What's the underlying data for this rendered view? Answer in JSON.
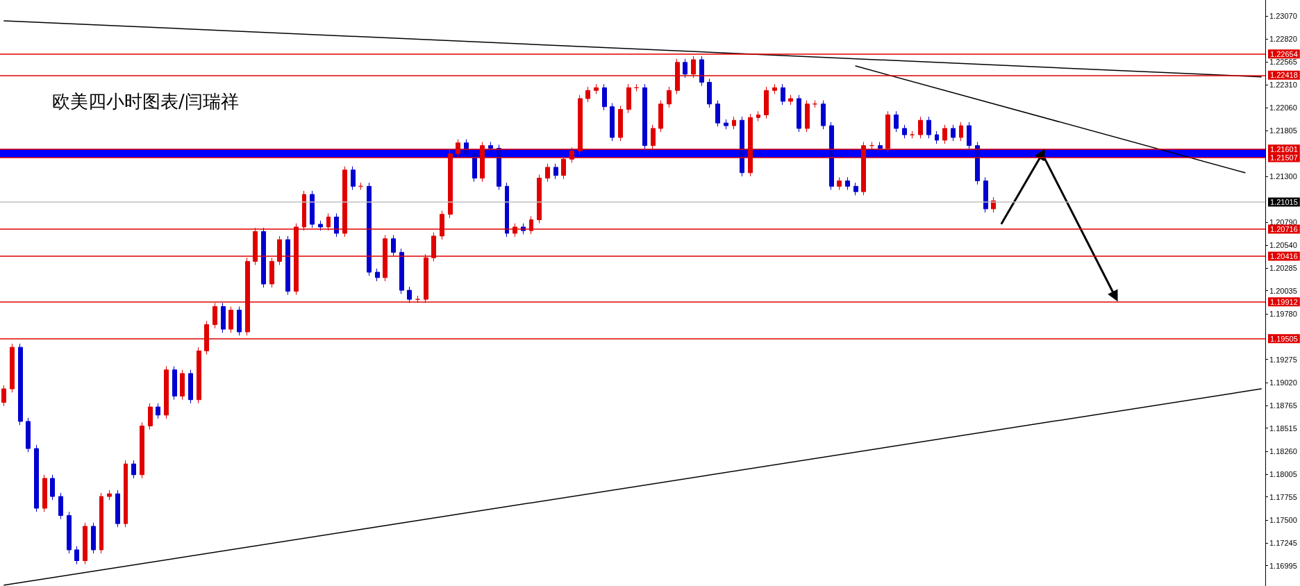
{
  "chart_data": {
    "type": "candlestick",
    "title": "欧美四小时图表/闫瑞祥",
    "categories": [
      null,
      null,
      null,
      null,
      null,
      null,
      null,
      null,
      null,
      null,
      null,
      null,
      null,
      null,
      null,
      null,
      null,
      null,
      null,
      null,
      null,
      null,
      null,
      null,
      null,
      null,
      null,
      null,
      null,
      null,
      null,
      null,
      null,
      null,
      null,
      null,
      null,
      null,
      null,
      null,
      null,
      null,
      null,
      null,
      null,
      null,
      null,
      null,
      null,
      null,
      null,
      null,
      null,
      null,
      null,
      null,
      null,
      null,
      null,
      null,
      null,
      null,
      null,
      null,
      null,
      null,
      null,
      null,
      null,
      null,
      null,
      null,
      null,
      null,
      null,
      null,
      null,
      null,
      null,
      null,
      null,
      null,
      null,
      null,
      null,
      null,
      null,
      null,
      null,
      null,
      null,
      null,
      null,
      null,
      null,
      null,
      null,
      null,
      null,
      null,
      null,
      null,
      null,
      null,
      null,
      null,
      null,
      null,
      null,
      null,
      null,
      null,
      null,
      null,
      null,
      null,
      null,
      null,
      null,
      null,
      null,
      null,
      null,
      null,
      null,
      null,
      null,
      null,
      null,
      null,
      null,
      null,
      null,
      null,
      null,
      null,
      null,
      null,
      null,
      null,
      null,
      null,
      null,
      null,
      null,
      null,
      null,
      null,
      null,
      null,
      null,
      null,
      null,
      null,
      null,
      null
    ],
    "ohlc": [
      [
        1.188,
        1.1899,
        1.1876,
        1.1895
      ],
      [
        1.1895,
        1.1945,
        1.1891,
        1.1941
      ],
      [
        1.1941,
        1.1945,
        1.1855,
        1.1859
      ],
      [
        1.1859,
        1.1863,
        1.1825,
        1.1829
      ],
      [
        1.1829,
        1.1833,
        1.1759,
        1.1763
      ],
      [
        1.1763,
        1.18,
        1.1759,
        1.1796
      ],
      [
        1.1796,
        1.18,
        1.1772,
        1.1776
      ],
      [
        1.1776,
        1.178,
        1.1751,
        1.1755
      ],
      [
        1.1755,
        1.1759,
        1.1713,
        1.1717
      ],
      [
        1.1717,
        1.1721,
        1.1701,
        1.1705
      ],
      [
        1.1705,
        1.1747,
        1.1701,
        1.1743
      ],
      [
        1.1743,
        1.1747,
        1.1713,
        1.1717
      ],
      [
        1.1717,
        1.178,
        1.1713,
        1.1776
      ],
      [
        1.1776,
        1.1783,
        1.1772,
        1.1779
      ],
      [
        1.1779,
        1.1783,
        1.1742,
        1.1746
      ],
      [
        1.1746,
        1.1816,
        1.1742,
        1.1812
      ],
      [
        1.1812,
        1.1816,
        1.1796,
        1.18
      ],
      [
        1.18,
        1.1858,
        1.1796,
        1.1854
      ],
      [
        1.1854,
        1.1879,
        1.185,
        1.1875
      ],
      [
        1.1875,
        1.1879,
        1.1862,
        1.1866
      ],
      [
        1.1866,
        1.192,
        1.1862,
        1.1916
      ],
      [
        1.1916,
        1.192,
        1.1883,
        1.1887
      ],
      [
        1.1887,
        1.1916,
        1.1883,
        1.1912
      ],
      [
        1.1912,
        1.1916,
        1.1879,
        1.1883
      ],
      [
        1.1883,
        1.1941,
        1.1879,
        1.1937
      ],
      [
        1.1937,
        1.197,
        1.1933,
        1.1966
      ],
      [
        1.1966,
        1.199,
        1.1962,
        1.1986
      ],
      [
        1.1986,
        1.199,
        1.1957,
        1.1961
      ],
      [
        1.1961,
        1.1986,
        1.1957,
        1.1982
      ],
      [
        1.1982,
        1.1986,
        1.1954,
        1.1958
      ],
      [
        1.1958,
        1.204,
        1.1954,
        1.2036
      ],
      [
        1.2036,
        1.2073,
        1.2032,
        1.2069
      ],
      [
        1.2069,
        1.2073,
        1.2007,
        1.2011
      ],
      [
        1.2011,
        1.204,
        1.2007,
        1.2036
      ],
      [
        1.2036,
        1.2064,
        1.2032,
        1.206
      ],
      [
        1.206,
        1.2064,
        1.1999,
        1.2003
      ],
      [
        1.2003,
        1.2078,
        1.1999,
        1.2074
      ],
      [
        1.2074,
        1.2114,
        1.207,
        1.211
      ],
      [
        1.211,
        1.2114,
        1.2073,
        1.2077
      ],
      [
        1.2077,
        1.2081,
        1.207,
        1.2074
      ],
      [
        1.2074,
        1.2089,
        1.207,
        1.2085
      ],
      [
        1.2085,
        1.2089,
        1.2063,
        1.2067
      ],
      [
        1.2067,
        1.2141,
        1.2063,
        1.2137
      ],
      [
        1.2137,
        1.2141,
        1.2115,
        1.2119
      ],
      [
        1.2119,
        1.2123,
        1.2115,
        1.2119
      ],
      [
        1.2119,
        1.2123,
        1.202,
        1.2024
      ],
      [
        1.2024,
        1.2028,
        1.2014,
        1.2018
      ],
      [
        1.2018,
        1.2065,
        1.2014,
        1.2061
      ],
      [
        1.2061,
        1.2065,
        1.2042,
        1.2046
      ],
      [
        1.2046,
        1.205,
        1.2,
        1.2004
      ],
      [
        1.2004,
        1.2008,
        1.199,
        1.1994
      ],
      [
        1.1994,
        1.1998,
        1.199,
        1.1994
      ],
      [
        1.1994,
        1.2044,
        1.199,
        1.204
      ],
      [
        1.204,
        1.2068,
        1.2036,
        1.2064
      ],
      [
        1.2064,
        1.2092,
        1.206,
        1.2088
      ],
      [
        1.2088,
        1.2159,
        1.2084,
        1.2155
      ],
      [
        1.2155,
        1.2171,
        1.2151,
        1.2167
      ],
      [
        1.2167,
        1.2171,
        1.2151,
        1.2155
      ],
      [
        1.2155,
        1.2159,
        1.2124,
        1.2128
      ],
      [
        1.2128,
        1.2168,
        1.2124,
        1.2164
      ],
      [
        1.2164,
        1.2168,
        1.2157,
        1.2161
      ],
      [
        1.2161,
        1.2165,
        1.2115,
        1.2119
      ],
      [
        1.2119,
        1.2123,
        1.2063,
        1.2067
      ],
      [
        1.2067,
        1.2078,
        1.2063,
        1.2074
      ],
      [
        1.2074,
        1.2078,
        1.2066,
        1.207
      ],
      [
        1.207,
        1.2086,
        1.2066,
        1.2082
      ],
      [
        1.2082,
        1.2132,
        1.2078,
        1.2128
      ],
      [
        1.2128,
        1.2144,
        1.2124,
        1.214
      ],
      [
        1.214,
        1.2144,
        1.2127,
        1.2131
      ],
      [
        1.2131,
        1.2153,
        1.2127,
        1.2149
      ],
      [
        1.2149,
        1.2162,
        1.2145,
        1.2158
      ],
      [
        1.2158,
        1.222,
        1.2154,
        1.2216
      ],
      [
        1.2216,
        1.2229,
        1.2212,
        1.2225
      ],
      [
        1.2225,
        1.2232,
        1.2221,
        1.2228
      ],
      [
        1.2228,
        1.2232,
        1.2203,
        1.2207
      ],
      [
        1.2207,
        1.2211,
        1.2169,
        1.2173
      ],
      [
        1.2173,
        1.2208,
        1.2169,
        1.2204
      ],
      [
        1.2204,
        1.2232,
        1.22,
        1.2228
      ],
      [
        1.2228,
        1.2232,
        1.2224,
        1.2228
      ],
      [
        1.2228,
        1.2232,
        1.216,
        1.2164
      ],
      [
        1.2164,
        1.2187,
        1.216,
        1.2183
      ],
      [
        1.2183,
        1.2214,
        1.2179,
        1.221
      ],
      [
        1.221,
        1.2229,
        1.2206,
        1.2225
      ],
      [
        1.2225,
        1.226,
        1.2221,
        1.2256
      ],
      [
        1.2256,
        1.226,
        1.2239,
        1.2243
      ],
      [
        1.2243,
        1.2263,
        1.2239,
        1.2259
      ],
      [
        1.2259,
        1.2263,
        1.223,
        1.2234
      ],
      [
        1.2234,
        1.2238,
        1.2206,
        1.221
      ],
      [
        1.221,
        1.2214,
        1.2185,
        1.2189
      ],
      [
        1.2189,
        1.2193,
        1.2182,
        1.2186
      ],
      [
        1.2186,
        1.2196,
        1.2182,
        1.2192
      ],
      [
        1.2192,
        1.2196,
        1.213,
        1.2134
      ],
      [
        1.2134,
        1.2199,
        1.213,
        1.2195
      ],
      [
        1.2195,
        1.2202,
        1.2191,
        1.2198
      ],
      [
        1.2198,
        1.2229,
        1.2194,
        1.2225
      ],
      [
        1.2225,
        1.2232,
        1.2221,
        1.2228
      ],
      [
        1.2228,
        1.2232,
        1.2209,
        1.2213
      ],
      [
        1.2213,
        1.222,
        1.2209,
        1.2216
      ],
      [
        1.2216,
        1.222,
        1.2179,
        1.2183
      ],
      [
        1.2183,
        1.2214,
        1.2179,
        1.221
      ],
      [
        1.221,
        1.2214,
        1.2206,
        1.221
      ],
      [
        1.221,
        1.2214,
        1.2182,
        1.2186
      ],
      [
        1.2186,
        1.219,
        1.2115,
        1.2119
      ],
      [
        1.2119,
        1.2129,
        1.2115,
        1.2125
      ],
      [
        1.2125,
        1.2129,
        1.2115,
        1.2119
      ],
      [
        1.2119,
        1.2123,
        1.2109,
        1.2113
      ],
      [
        1.2113,
        1.2168,
        1.2109,
        1.2164
      ],
      [
        1.2164,
        1.2168,
        1.216,
        1.2164
      ],
      [
        1.2164,
        1.2168,
        1.2157,
        1.2161
      ],
      [
        1.2161,
        1.2202,
        1.2157,
        1.2198
      ],
      [
        1.2198,
        1.2202,
        1.2179,
        1.2183
      ],
      [
        1.2183,
        1.2187,
        1.2172,
        1.2176
      ],
      [
        1.2176,
        1.218,
        1.2172,
        1.2176
      ],
      [
        1.2176,
        1.2196,
        1.2172,
        1.2192
      ],
      [
        1.2192,
        1.2196,
        1.2172,
        1.2176
      ],
      [
        1.2176,
        1.218,
        1.2166,
        1.217
      ],
      [
        1.217,
        1.2187,
        1.2166,
        1.2183
      ],
      [
        1.2183,
        1.2187,
        1.2169,
        1.2173
      ],
      [
        1.2173,
        1.219,
        1.2169,
        1.2186
      ],
      [
        1.2186,
        1.219,
        1.216,
        1.2164
      ],
      [
        1.2164,
        1.2168,
        1.2121,
        1.2125
      ],
      [
        1.2125,
        1.2129,
        1.209,
        1.2094
      ],
      [
        1.2094,
        1.2107,
        1.209,
        1.2103
      ],
      null,
      null,
      null,
      null,
      null,
      null,
      null,
      null,
      null,
      null,
      null,
      null,
      null,
      null,
      null,
      null,
      null,
      null,
      null,
      null,
      null,
      null,
      null,
      null,
      null,
      null,
      null,
      null,
      null,
      null,
      null,
      null,
      null
    ],
    "series": [
      {
        "type": "line",
        "color": "#000000",
        "values": [
          1.2302,
          null,
          null,
          null,
          null,
          null,
          null,
          null,
          null,
          null,
          null,
          null,
          null,
          null,
          null,
          null,
          null,
          null,
          null,
          null,
          null,
          null,
          null,
          null,
          null,
          null,
          null,
          null,
          null,
          null,
          null,
          null,
          null,
          null,
          null,
          null,
          null,
          null,
          null,
          null,
          null,
          null,
          null,
          null,
          null,
          null,
          null,
          null,
          null,
          null,
          null,
          null,
          null,
          null,
          null,
          null,
          null,
          null,
          null,
          null,
          null,
          null,
          null,
          null,
          null,
          null,
          null,
          null,
          null,
          null,
          null,
          null,
          null,
          null,
          null,
          null,
          null,
          null,
          null,
          null,
          null,
          null,
          null,
          null,
          null,
          null,
          null,
          null,
          null,
          null,
          null,
          null,
          null,
          null,
          null,
          null,
          null,
          null,
          null,
          null,
          null,
          null,
          null,
          null,
          null,
          null,
          null,
          null,
          null,
          null,
          null,
          null,
          null,
          null,
          null,
          null,
          null,
          null,
          null,
          null,
          null,
          null,
          null,
          null,
          null,
          null,
          null,
          null,
          null,
          null,
          null,
          null,
          null,
          null,
          null,
          null,
          null,
          null,
          null,
          null,
          null,
          null,
          null,
          null,
          null,
          null,
          null,
          null,
          null,
          null,
          null,
          null,
          null,
          null,
          null,
          1.224
        ]
      },
      {
        "type": "line",
        "color": "#000000",
        "values": [
          1.1678,
          null,
          null,
          null,
          null,
          null,
          null,
          null,
          null,
          null,
          null,
          null,
          null,
          null,
          null,
          null,
          null,
          null,
          null,
          null,
          null,
          null,
          null,
          null,
          null,
          null,
          null,
          null,
          null,
          null,
          null,
          null,
          null,
          null,
          null,
          null,
          null,
          null,
          null,
          null,
          null,
          null,
          null,
          null,
          null,
          null,
          null,
          null,
          null,
          null,
          null,
          null,
          null,
          null,
          null,
          null,
          null,
          null,
          null,
          null,
          null,
          null,
          null,
          null,
          null,
          null,
          null,
          null,
          null,
          null,
          null,
          null,
          null,
          null,
          null,
          null,
          null,
          null,
          null,
          null,
          null,
          null,
          null,
          null,
          null,
          null,
          null,
          null,
          null,
          null,
          null,
          null,
          null,
          null,
          null,
          null,
          null,
          null,
          null,
          null,
          null,
          null,
          null,
          null,
          null,
          null,
          null,
          null,
          null,
          null,
          null,
          null,
          null,
          null,
          null,
          null,
          null,
          null,
          null,
          null,
          null,
          null,
          null,
          null,
          null,
          null,
          null,
          null,
          null,
          null,
          null,
          null,
          null,
          null,
          null,
          null,
          null,
          null,
          null,
          null,
          null,
          null,
          null,
          null,
          null,
          null,
          null,
          null,
          null,
          null,
          null,
          null,
          null,
          null,
          null,
          1.1895
        ]
      },
      {
        "type": "line",
        "color": "#000000",
        "values": [
          null,
          null,
          null,
          null,
          null,
          null,
          null,
          null,
          null,
          null,
          null,
          null,
          null,
          null,
          null,
          null,
          null,
          null,
          null,
          null,
          null,
          null,
          null,
          null,
          null,
          null,
          null,
          null,
          null,
          null,
          null,
          null,
          null,
          null,
          null,
          null,
          null,
          null,
          null,
          null,
          null,
          null,
          null,
          null,
          null,
          null,
          null,
          null,
          null,
          null,
          null,
          null,
          null,
          null,
          null,
          null,
          null,
          null,
          null,
          null,
          null,
          null,
          null,
          null,
          null,
          null,
          null,
          null,
          null,
          null,
          null,
          null,
          null,
          null,
          null,
          null,
          null,
          null,
          null,
          null,
          null,
          null,
          null,
          null,
          null,
          null,
          null,
          null,
          null,
          null,
          null,
          null,
          null,
          null,
          null,
          null,
          null,
          null,
          null,
          null,
          null,
          null,
          null,
          null,
          null,
          1.2252,
          null,
          null,
          null,
          null,
          null,
          null,
          null,
          null,
          null,
          null,
          null,
          null,
          null,
          null,
          null,
          null,
          null,
          null,
          null,
          null,
          null,
          null,
          null,
          null,
          null,
          null,
          null,
          null,
          null,
          null,
          null,
          null,
          null,
          null,
          null,
          null,
          null,
          null,
          null,
          null,
          null,
          null,
          null,
          null,
          null,
          null,
          null,
          1.2134,
          null,
          null
        ]
      },
      {
        "type": "line",
        "color": "#000000",
        "marker": "triangle",
        "values": [
          null,
          null,
          null,
          null,
          null,
          null,
          null,
          null,
          null,
          null,
          null,
          null,
          null,
          null,
          null,
          null,
          null,
          null,
          null,
          null,
          null,
          null,
          null,
          null,
          null,
          null,
          null,
          null,
          null,
          null,
          null,
          null,
          null,
          null,
          null,
          null,
          null,
          null,
          null,
          null,
          null,
          null,
          null,
          null,
          null,
          null,
          null,
          null,
          null,
          null,
          null,
          null,
          null,
          null,
          null,
          null,
          null,
          null,
          null,
          null,
          null,
          null,
          null,
          null,
          null,
          null,
          null,
          null,
          null,
          null,
          null,
          null,
          null,
          null,
          null,
          null,
          null,
          null,
          null,
          null,
          null,
          null,
          null,
          null,
          null,
          null,
          null,
          null,
          null,
          null,
          null,
          null,
          null,
          null,
          null,
          null,
          null,
          null,
          null,
          null,
          null,
          null,
          null,
          null,
          null,
          null,
          null,
          null,
          null,
          null,
          null,
          null,
          null,
          null,
          null,
          null,
          null,
          null,
          null,
          null,
          null,
          null,
          null,
          1.2078,
          null,
          null,
          null,
          null,
          1.2155,
          null,
          null,
          null,
          null,
          null,
          null,
          null,
          null,
          1.1997,
          null,
          null,
          null,
          null,
          null,
          null,
          null,
          null,
          null,
          null,
          null,
          null,
          null,
          null,
          null,
          null,
          null,
          null
        ]
      }
    ],
    "ylim": [
      1.1677,
      1.2325
    ],
    "yticks": [
      {
        "value": 1.2307,
        "label": "1.23070"
      },
      {
        "value": 1.2282,
        "label": "1.22820"
      },
      1.22565,
      {
        "value": 1.2231,
        "label": "1.22310"
      },
      {
        "value": 1.2206,
        "label": "1.22060"
      },
      1.21805,
      {
        "value": 1.213,
        "label": "1.21300"
      },
      {
        "value": 1.2079,
        "label": "1.20790"
      },
      {
        "value": 1.2054,
        "label": "1.20540"
      },
      1.20285,
      1.20035,
      {
        "value": 1.1978,
        "label": "1.19780"
      },
      1.19275,
      {
        "value": 1.1902,
        "label": "1.19020"
      },
      1.18765,
      1.18515,
      {
        "value": 1.1826,
        "label": "1.18260"
      },
      1.18005,
      1.17755,
      {
        "value": 1.175,
        "label": "1.17500"
      },
      1.17245,
      1.16995
    ],
    "ref_lines": [
      {
        "axis": "y",
        "value": 1.22654,
        "label": "1.22654",
        "color": "#e00000"
      },
      {
        "axis": "y",
        "value": 1.22418,
        "label": "1.22418",
        "color": "#e00000"
      },
      {
        "axis": "y",
        "value": 1.21601,
        "label": "1.21601",
        "color": "#e00000"
      },
      {
        "axis": "y",
        "value": 1.21507,
        "label": "1.21507",
        "color": "#e00000"
      },
      {
        "axis": "y",
        "value": 1.21015,
        "label": "1.21015",
        "color": "#c0c0c0"
      },
      {
        "axis": "y",
        "value": 1.20716,
        "label": "1.20716",
        "color": "#e00000"
      },
      {
        "axis": "y",
        "value": 1.20416,
        "label": "1.20416",
        "color": "#e00000"
      },
      {
        "axis": "y",
        "value": 1.19912,
        "label": "1.19912",
        "color": "#e00000"
      },
      {
        "axis": "y",
        "value": 1.19505,
        "label": "1.19505",
        "color": "#e00000"
      }
    ],
    "bands": [
      {
        "axis": "y",
        "from": 1.21507,
        "to": 1.21601,
        "color": "#0000ff"
      }
    ],
    "tick_labels": "y",
    "grid": false,
    "marker": "none"
  }
}
